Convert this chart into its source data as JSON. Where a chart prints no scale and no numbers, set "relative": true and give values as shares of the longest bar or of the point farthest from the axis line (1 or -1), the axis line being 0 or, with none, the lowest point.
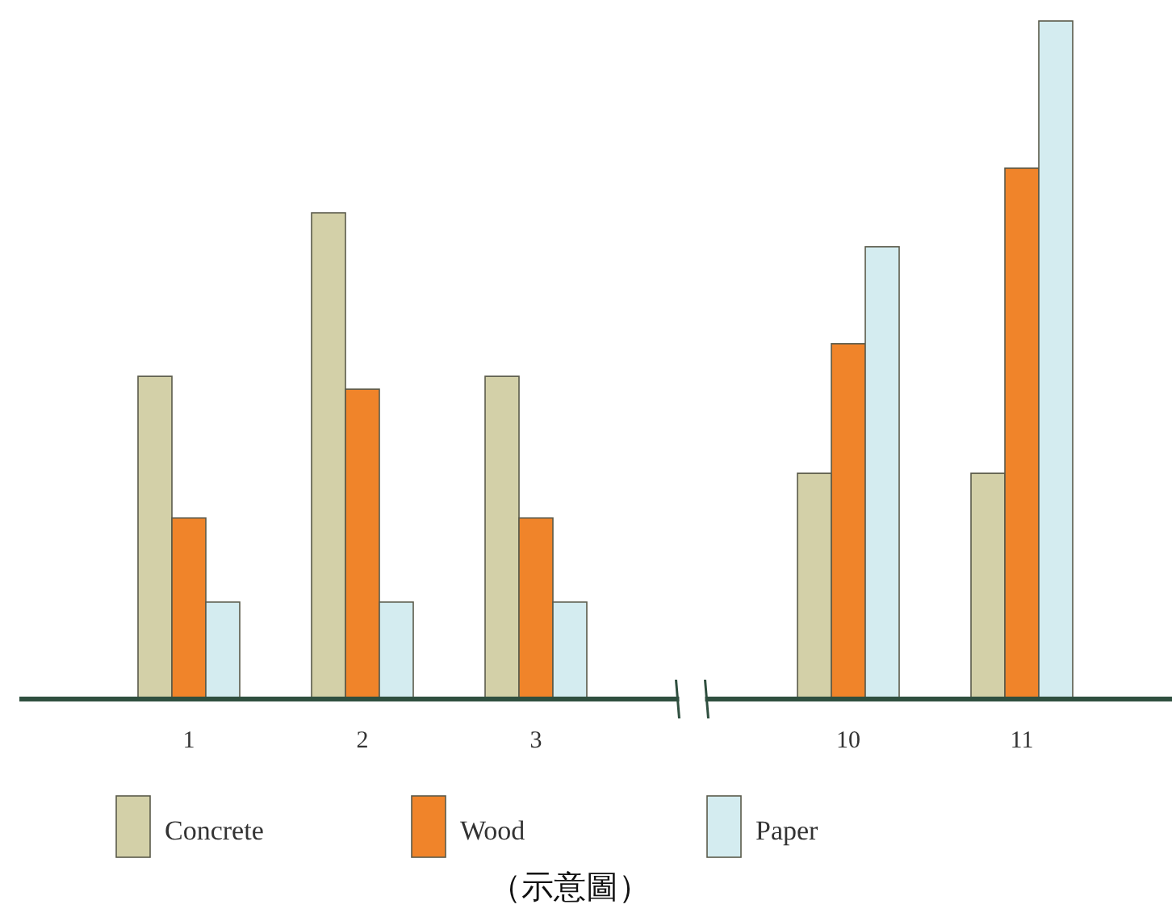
{
  "chart_data": {
    "type": "bar",
    "relative": true,
    "categories": [
      "1",
      "2",
      "3",
      "10",
      "11"
    ],
    "series": [
      {
        "name": "Concrete",
        "color": "#d3d0a8",
        "values": [
          0.476,
          0.717,
          0.476,
          0.333,
          0.333
        ]
      },
      {
        "name": "Wood",
        "color": "#f0842a",
        "values": [
          0.267,
          0.457,
          0.267,
          0.524,
          0.783
        ]
      },
      {
        "name": "Paper",
        "color": "#d4ecf0",
        "values": [
          0.143,
          0.143,
          0.143,
          0.667,
          1
        ]
      }
    ],
    "legend": "bottom",
    "annotations": [
      "（示意圖）"
    ]
  }
}
